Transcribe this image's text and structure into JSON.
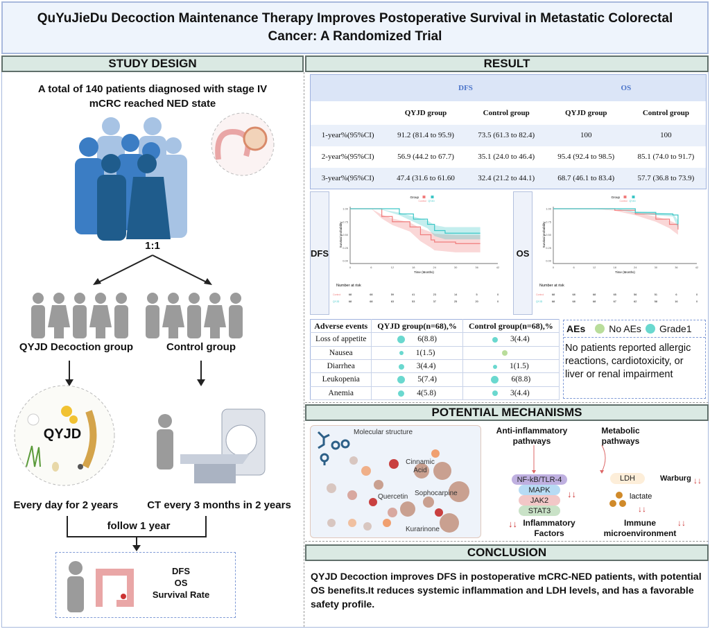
{
  "title": "QuYuJieDu Decoction Maintenance Therapy Improves Postoperative Survival in Metastatic Colorectal Cancer: A Randomized Trial",
  "sections": {
    "study_design": "STUDY DESIGN",
    "result": "RESULT",
    "mechanisms": "POTENTIAL  MECHANISMS",
    "conclusion": "CONCLUSION"
  },
  "study": {
    "intro": "A total of 140 patients diagnosed with stage IV mCRC reached NED state",
    "ratio": "1:1",
    "group_a": "QYJD Decoction group",
    "group_b": "Control group",
    "herb_label": "QYJD",
    "schedule_a": "Every day for 2 years",
    "schedule_b": "CT every 3 months in 2 years",
    "follow": "follow 1 year",
    "endpoints": [
      "DFS",
      "OS",
      "Survival Rate"
    ]
  },
  "survival_table": {
    "groups": [
      "DFS",
      "OS"
    ],
    "columns": [
      "QYJD group",
      "Control group",
      "QYJD group",
      "Control group"
    ],
    "rows": [
      {
        "label": "1-year%(95%CI)",
        "values": [
          "91.2 (81.4 to 95.9)",
          "73.5 (61.3 to 82.4)",
          "100",
          "100"
        ]
      },
      {
        "label": "2-year%(95%CI)",
        "values": [
          "56.9 (44.2 to 67.7)",
          "35.1 (24.0 to 46.4)",
          "95.4 (92.4 to 98.5)",
          "85.1 (74.0 to 91.7)"
        ]
      },
      {
        "label": "3-year%(95%CI)",
        "values": [
          "47.4 (31.6 to 61.60",
          "32.4 (21.2 to 44.1)",
          "68.7 (46.1 to 83.4)",
          "57.7 (36.8 to 73.9)"
        ]
      }
    ]
  },
  "chart_data": [
    {
      "type": "line",
      "panel_label": "DFS",
      "xlabel": "Time (Months)",
      "ylabel": "Survival probability",
      "legend_title": "Group",
      "legend": "top",
      "xlim": [
        0,
        42
      ],
      "ylim": [
        0,
        1
      ],
      "xticks": [
        0,
        6,
        12,
        18,
        24,
        30,
        36,
        42
      ],
      "yticks": [
        "0.00",
        "0.25",
        "0.50",
        "0.75",
        "1.00"
      ],
      "series": [
        {
          "name": "Control",
          "color": "#f07c7c",
          "x": [
            0,
            6,
            9,
            12,
            17,
            20,
            23,
            24,
            30,
            37
          ],
          "y": [
            1,
            1,
            0.85,
            0.75,
            0.65,
            0.5,
            0.4,
            0.36,
            0.33,
            0.33
          ]
        },
        {
          "name": "QYJD",
          "color": "#3cc6c6",
          "x": [
            0,
            8,
            14,
            18,
            22,
            24,
            27,
            37
          ],
          "y": [
            1,
            1,
            0.9,
            0.8,
            0.7,
            0.58,
            0.53,
            0.53
          ]
        }
      ],
      "risk_table": {
        "title": "Number at risk",
        "rows": [
          {
            "name": "Control",
            "values": [
              68,
              68,
              59,
              41,
              23,
              14,
              5,
              0
            ]
          },
          {
            "name": "QYJD",
            "values": [
              68,
              68,
              63,
              53,
              37,
              25,
              20,
              0
            ]
          }
        ]
      }
    },
    {
      "type": "line",
      "panel_label": "OS",
      "xlabel": "Time (Months)",
      "ylabel": "Survival probability",
      "legend_title": "Group",
      "legend": "top",
      "xlim": [
        0,
        42
      ],
      "ylim": [
        0,
        1
      ],
      "xticks": [
        0,
        6,
        12,
        18,
        24,
        30,
        36,
        42
      ],
      "yticks": [
        "0.00",
        "0.25",
        "0.50",
        "0.75",
        "1.00"
      ],
      "series": [
        {
          "name": "Control",
          "color": "#f07c7c",
          "x": [
            0,
            12,
            18,
            24,
            30,
            34,
            36.5
          ],
          "y": [
            1,
            1,
            0.97,
            0.9,
            0.8,
            0.7,
            0.6
          ]
        },
        {
          "name": "QYJD",
          "color": "#3cc6c6",
          "x": [
            0,
            18,
            24,
            30,
            35,
            36.5
          ],
          "y": [
            1,
            1,
            0.93,
            0.9,
            0.88,
            0.7
          ]
        }
      ],
      "risk_table": {
        "title": "Number at risk",
        "rows": [
          {
            "name": "Control",
            "values": [
              68,
              68,
              68,
              65,
              56,
              51,
              6,
              0
            ]
          },
          {
            "name": "QYJD",
            "values": [
              68,
              68,
              68,
              67,
              62,
              58,
              16,
              0
            ]
          }
        ]
      }
    }
  ],
  "adverse_events": {
    "headers": [
      "Adverse events",
      "QYJD group(n=68),%",
      "Control group(n=68),%"
    ],
    "rows": [
      {
        "event": "Loss of appetite",
        "qyjd": "6(8.8)",
        "control": "3(4.4)"
      },
      {
        "event": "Nausea",
        "qyjd": "1(1.5)",
        "control": ""
      },
      {
        "event": "Diarrhea",
        "qyjd": "3(4.4)",
        "control": "1(1.5)"
      },
      {
        "event": "Leukopenia",
        "qyjd": "5(7.4)",
        "control": "6(8.8)"
      },
      {
        "event": "Anemia",
        "qyjd": "4(5.8)",
        "control": "3(4.4)"
      }
    ],
    "legend_title": "AEs",
    "legend": [
      {
        "label": "No AEs",
        "color": "#b9dd9b"
      },
      {
        "label": "Grade1",
        "color": "#6ad8cf"
      }
    ],
    "note": "No patients reported allergic reactions, cardiotoxicity, or liver or renal impairment"
  },
  "mechanisms": {
    "molecular_label": "Molecular structure",
    "compounds": [
      "Cinnamic Acid",
      "Quercetin",
      "Sophocarpine",
      "Kurarinone"
    ],
    "anti_inflammatory": {
      "title": "Anti-inflammatory pathways",
      "pathway": [
        "NF-kB/TLR-4",
        "MAPK",
        "JAK2",
        "STAT3"
      ],
      "outcome": "Inflammatory Factors"
    },
    "metabolic": {
      "title": "Metabolic pathways",
      "enzyme": "LDH",
      "warburg": "Warburg",
      "metabolite": "lactate",
      "outcome": "Immune microenvironment"
    },
    "down_arrows": "↓↓"
  },
  "conclusion": "QYJD Decoction improves DFS in postoperative mCRC-NED patients, with potential OS benefits.It reduces systemic inflammation and LDH levels, and has a favorable safety profile."
}
